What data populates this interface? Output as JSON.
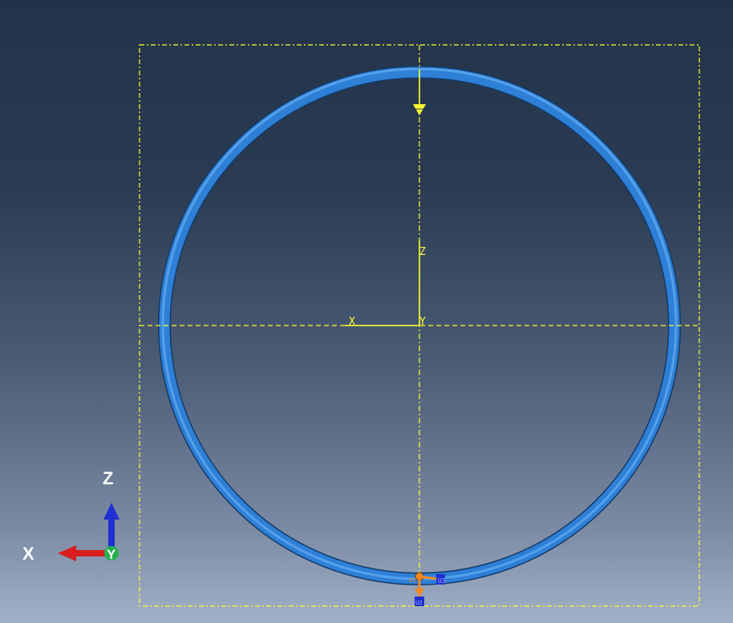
{
  "viewport": {
    "background_top": "#223349",
    "background_bottom": "#a2b0c7"
  },
  "model": {
    "ring_color": "#2e7fd6",
    "ring_edge_color": "#123a66",
    "guide_color": "#ffff33"
  },
  "local_axes": {
    "x_label": "X",
    "z_label": "Z",
    "y_label": "Y"
  },
  "global_triad": {
    "x_label": "X",
    "y_label": "Y",
    "z_label": "Z",
    "x_color": "#d81e1e",
    "y_color": "#22b14c",
    "z_color": "#1f2fd1"
  },
  "boundary_symbols": {
    "left_label": "U1",
    "right_label": "U3",
    "bottom_label": "U2"
  }
}
